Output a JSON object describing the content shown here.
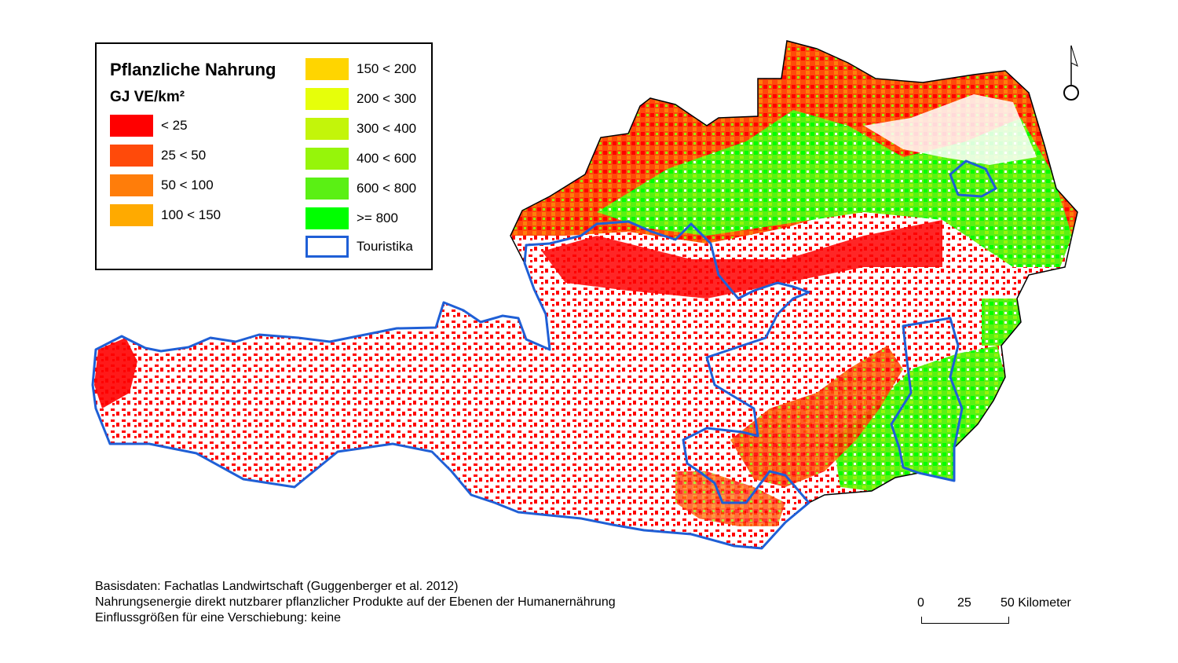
{
  "legend": {
    "title": "Pflanzliche Nahrung",
    "unit": "GJ VE/km²",
    "classes": [
      {
        "label": "< 25",
        "color": "#ff0000"
      },
      {
        "label": "25 < 50",
        "color": "#ff4a0a"
      },
      {
        "label": "50 < 100",
        "color": "#ff7d0a"
      },
      {
        "label": "100 < 150",
        "color": "#ffaa00"
      },
      {
        "label": "150 < 200",
        "color": "#ffd500"
      },
      {
        "label": "200 < 300",
        "color": "#e6ff0a"
      },
      {
        "label": "300 < 400",
        "color": "#c3f50a"
      },
      {
        "label": "400 < 600",
        "color": "#96f50a"
      },
      {
        "label": "600 < 800",
        "color": "#5af014"
      },
      {
        "label": ">= 800",
        "color": "#00ff00"
      }
    ],
    "touristika": {
      "label": "Touristika",
      "color": "#1f5fd6"
    }
  },
  "footer": {
    "line1": "Basisdaten: Fachatlas Landwirtschaft (Guggenberger et al. 2012)",
    "line2": "Nahrungsenergie direkt nutzbarer pflanzlicher Produkte auf der Ebenen der Humanernährung",
    "line3": "Einflussgrößen für eine Verschiebung: keine"
  },
  "scalebar": {
    "tick_0": "0",
    "tick_25": "25",
    "tick_50": "50 Kilometer"
  },
  "map": {
    "outline_color": "#000000",
    "region_color": "#1f5fd6",
    "region_name": "Touristika"
  }
}
